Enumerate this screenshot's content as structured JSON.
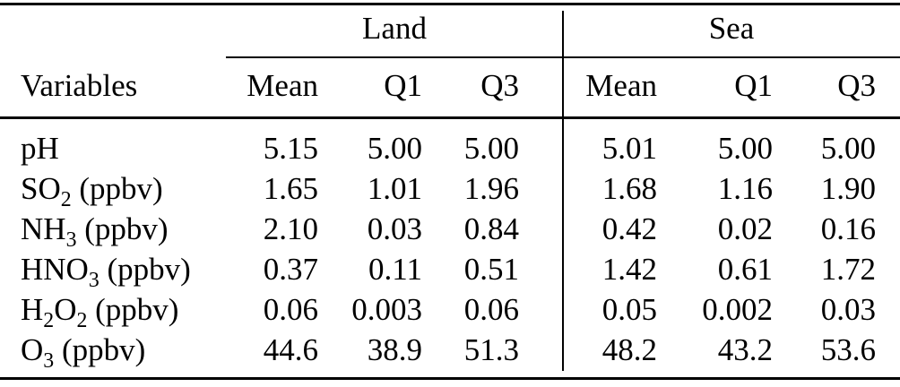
{
  "colors": {
    "background": "#ffffff",
    "text": "#000000",
    "rule": "#000000"
  },
  "table": {
    "corner_header": "Variables",
    "groups": [
      {
        "label": "Land"
      },
      {
        "label": "Sea"
      }
    ],
    "stat_headers": [
      "Mean",
      "Q1",
      "Q3"
    ],
    "rows": [
      {
        "variable": [
          {
            "t": "pH"
          }
        ],
        "values": [
          "5.15",
          "5.00",
          "5.00",
          "5.01",
          "5.00",
          "5.00"
        ]
      },
      {
        "variable": [
          {
            "t": "SO"
          },
          {
            "t": "2",
            "sub": true
          },
          {
            "t": " (ppbv)"
          }
        ],
        "values": [
          "1.65",
          "1.01",
          "1.96",
          "1.68",
          "1.16",
          "1.90"
        ]
      },
      {
        "variable": [
          {
            "t": "NH"
          },
          {
            "t": "3",
            "sub": true
          },
          {
            "t": " (ppbv)"
          }
        ],
        "values": [
          "2.10",
          "0.03",
          "0.84",
          "0.42",
          "0.02",
          "0.16"
        ]
      },
      {
        "variable": [
          {
            "t": "HNO"
          },
          {
            "t": "3",
            "sub": true
          },
          {
            "t": " (ppbv)"
          }
        ],
        "values": [
          "0.37",
          "0.11",
          "0.51",
          "1.42",
          "0.61",
          "1.72"
        ]
      },
      {
        "variable": [
          {
            "t": "H"
          },
          {
            "t": "2",
            "sub": true
          },
          {
            "t": "O"
          },
          {
            "t": "2",
            "sub": true
          },
          {
            "t": " (ppbv)"
          }
        ],
        "values": [
          "0.06",
          "0.003",
          "0.06",
          "0.05",
          "0.002",
          "0.03"
        ]
      },
      {
        "variable": [
          {
            "t": "O"
          },
          {
            "t": "3",
            "sub": true
          },
          {
            "t": " (ppbv)"
          }
        ],
        "values": [
          "44.6",
          "38.9",
          "51.3",
          "48.2",
          "43.2",
          "53.6"
        ]
      }
    ]
  }
}
